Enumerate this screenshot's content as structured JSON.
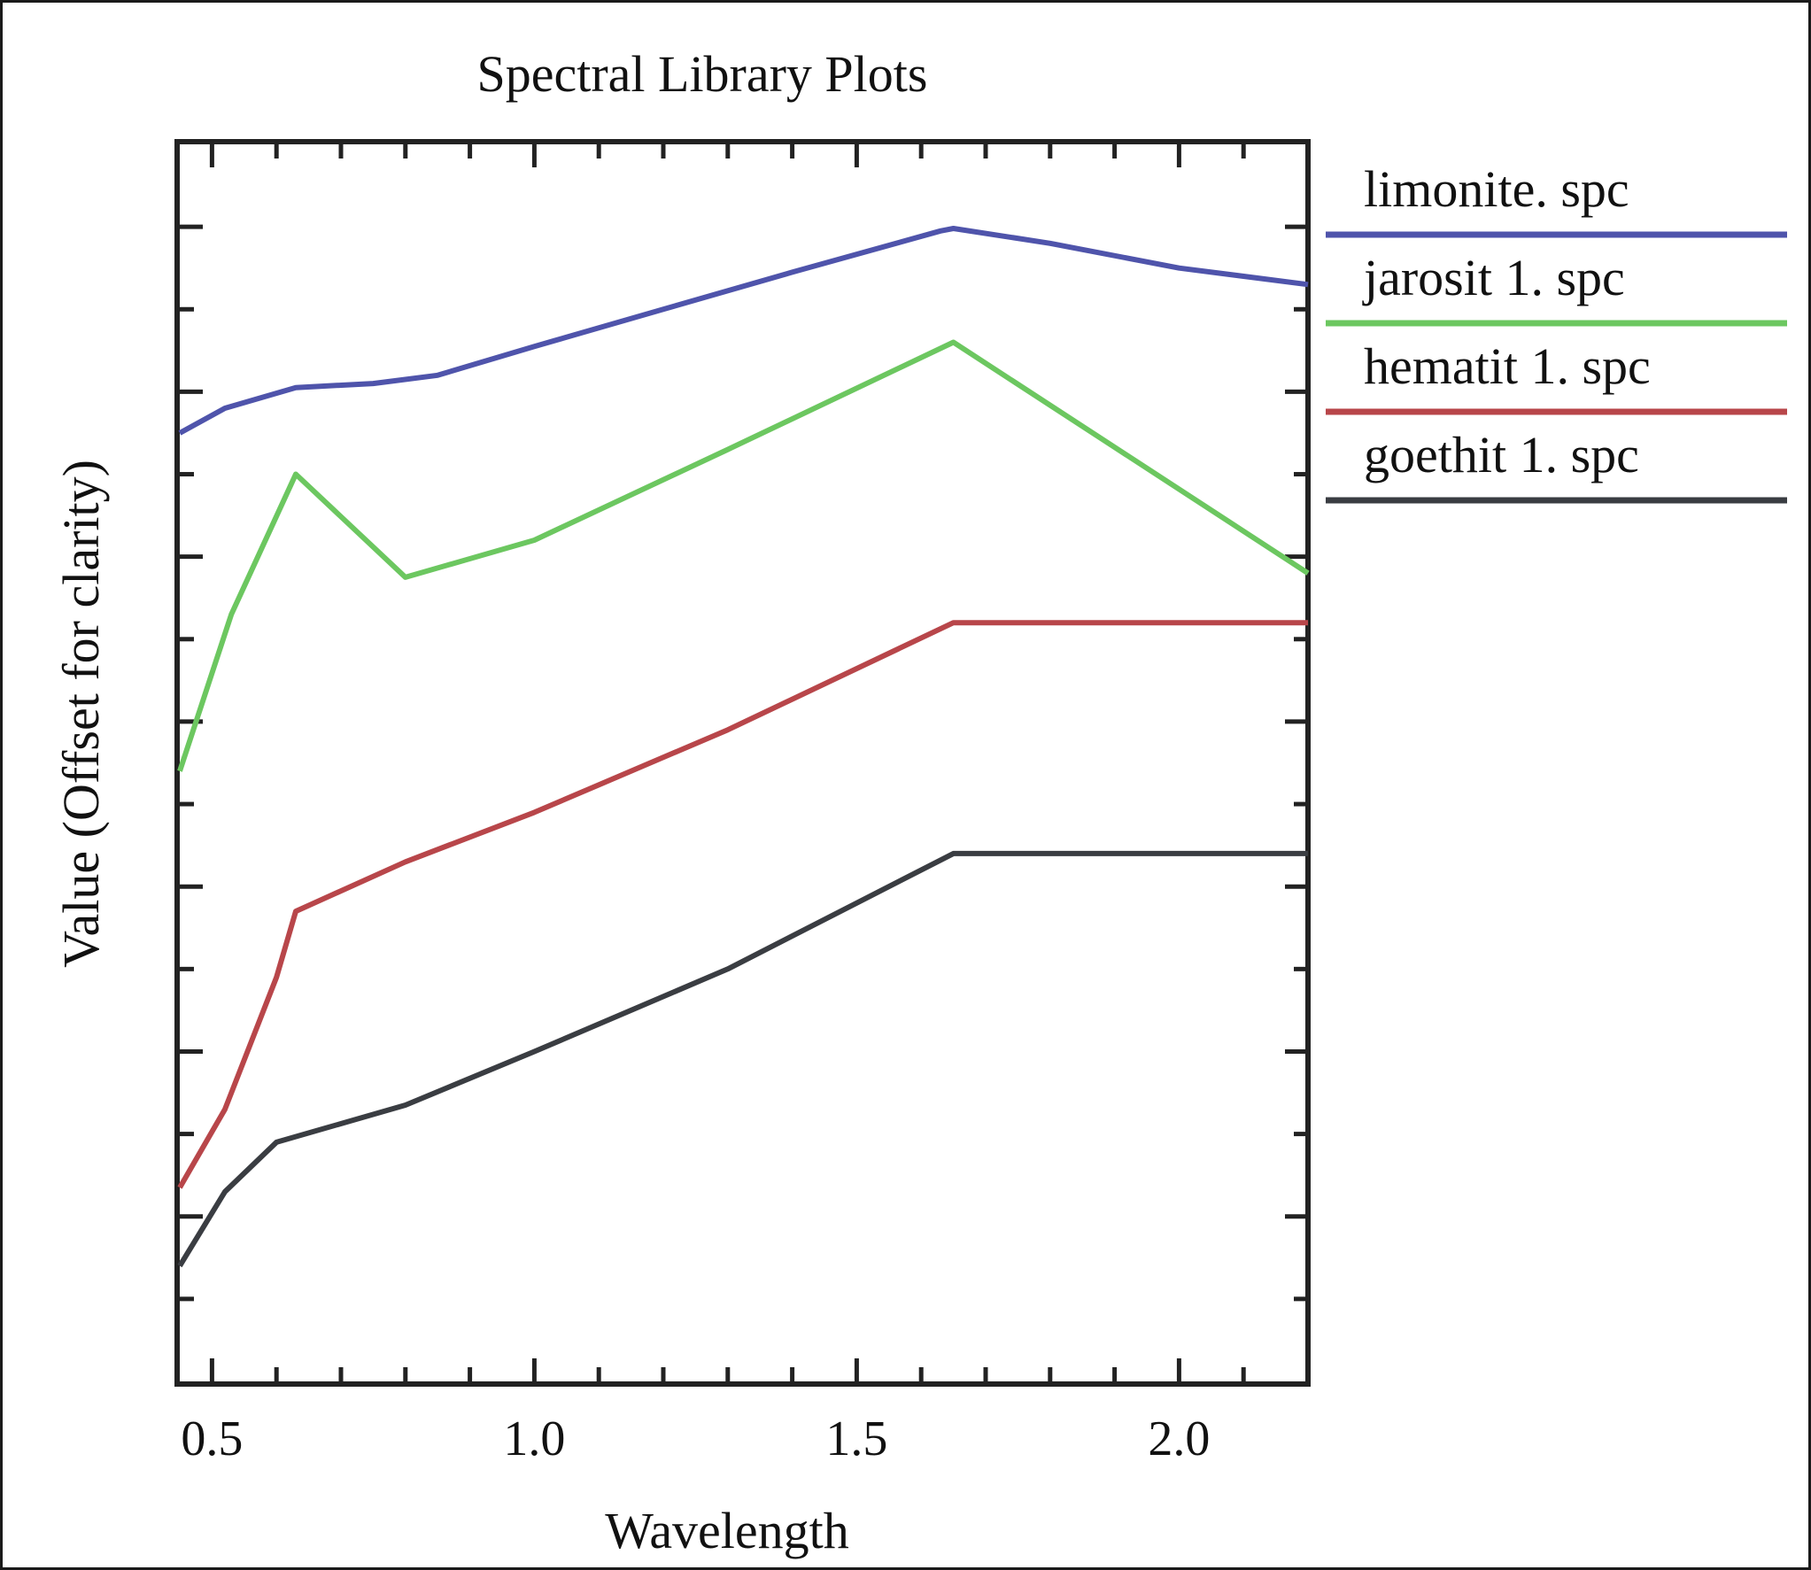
{
  "chart_data": {
    "type": "line",
    "title": "Spectral Library Plots",
    "xlabel": "Wavelength",
    "ylabel": "Value (Offset for clarity)",
    "xlim": [
      0.45,
      2.2
    ],
    "ylim": [
      0,
      15
    ],
    "x_ticks": [
      0.5,
      1.0,
      1.5,
      2.0
    ],
    "x_tick_labels": [
      "0.5",
      "1.0",
      "1.5",
      "2.0"
    ],
    "grid": false,
    "legend_position": "right",
    "series": [
      {
        "name": "limonite. spc",
        "color": "#4f54ab",
        "points": [
          [
            0.45,
            11.5
          ],
          [
            0.52,
            11.8
          ],
          [
            0.63,
            12.05
          ],
          [
            0.75,
            12.1
          ],
          [
            0.85,
            12.2
          ],
          [
            1.0,
            12.55
          ],
          [
            1.2,
            13.0
          ],
          [
            1.4,
            13.45
          ],
          [
            1.63,
            13.95
          ],
          [
            1.65,
            13.98
          ],
          [
            1.8,
            13.8
          ],
          [
            2.0,
            13.5
          ],
          [
            2.2,
            13.3
          ]
        ]
      },
      {
        "name": "jarosit 1. spc",
        "color": "#6cc760",
        "points": [
          [
            0.45,
            7.4
          ],
          [
            0.53,
            9.3
          ],
          [
            0.63,
            11.0
          ],
          [
            0.8,
            9.75
          ],
          [
            1.0,
            10.2
          ],
          [
            1.3,
            11.3
          ],
          [
            1.65,
            12.6
          ],
          [
            2.2,
            9.8
          ]
        ]
      },
      {
        "name": "hematit 1. spc",
        "color": "#b8464a",
        "points": [
          [
            0.45,
            2.35
          ],
          [
            0.52,
            3.3
          ],
          [
            0.6,
            4.9
          ],
          [
            0.63,
            5.7
          ],
          [
            0.8,
            6.3
          ],
          [
            1.0,
            6.9
          ],
          [
            1.3,
            7.9
          ],
          [
            1.65,
            9.2
          ],
          [
            2.2,
            9.2
          ]
        ]
      },
      {
        "name": "goethit 1. spc",
        "color": "#3a3d42",
        "points": [
          [
            0.45,
            1.4
          ],
          [
            0.52,
            2.3
          ],
          [
            0.6,
            2.9
          ],
          [
            0.8,
            3.35
          ],
          [
            1.0,
            4.0
          ],
          [
            1.3,
            5.0
          ],
          [
            1.65,
            6.4
          ],
          [
            2.2,
            6.4
          ]
        ]
      }
    ]
  }
}
